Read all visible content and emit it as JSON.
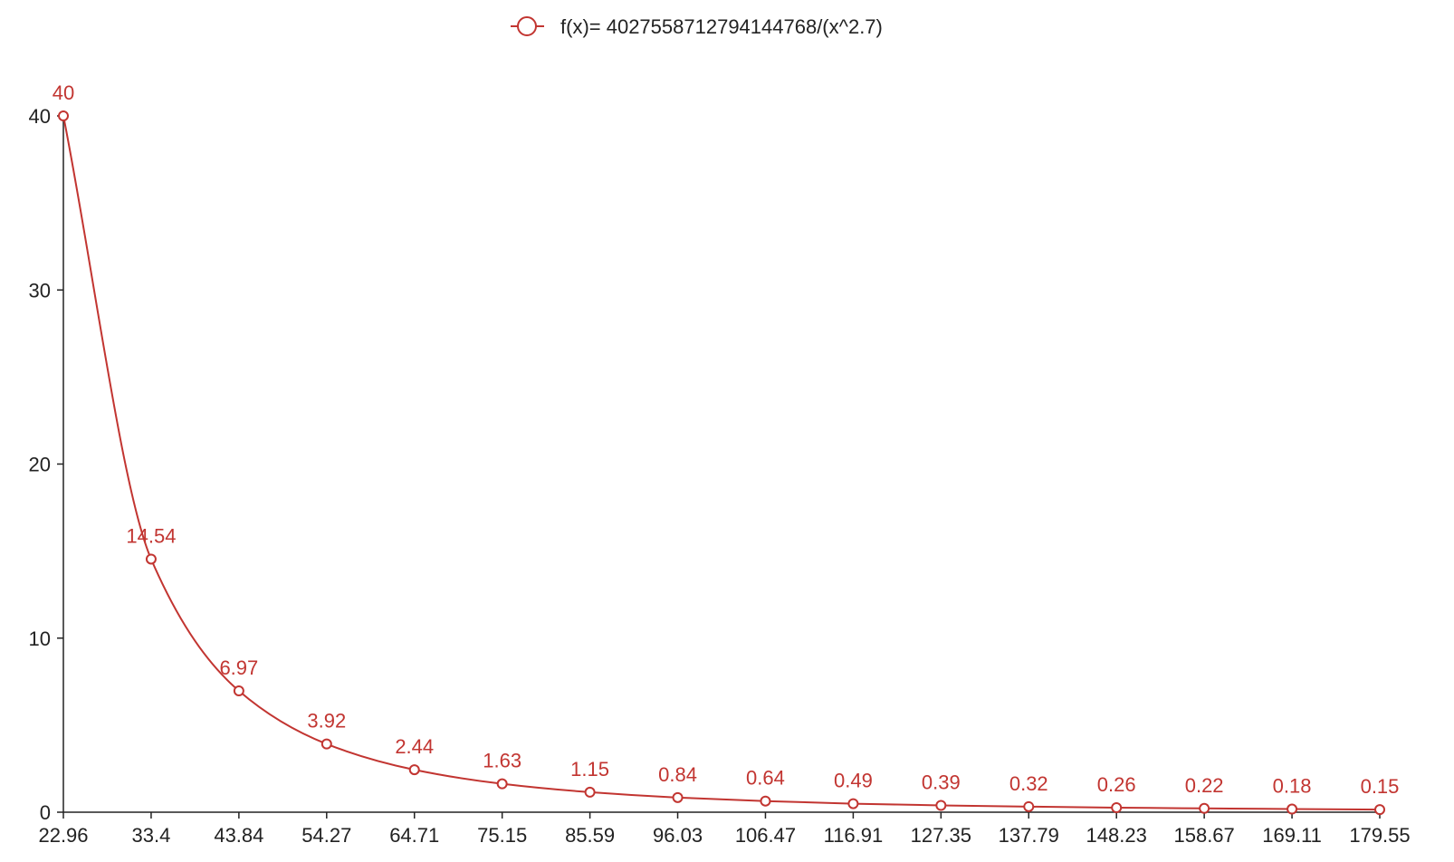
{
  "chart_data": {
    "type": "line",
    "title": "",
    "xlabel": "",
    "ylabel": "",
    "grid": false,
    "legend_position": "top-center",
    "smooth": true,
    "colors": {
      "series": "#c23531",
      "axis": "#222222",
      "marker_fill": "#ffffff"
    },
    "x_ticks": [
      "22.96",
      "33.4",
      "43.84",
      "54.27",
      "64.71",
      "75.15",
      "85.59",
      "96.03",
      "106.47",
      "116.91",
      "127.35",
      "137.79",
      "148.23",
      "158.67",
      "169.11",
      "179.55"
    ],
    "y_ticks": [
      0,
      10,
      20,
      30,
      40
    ],
    "ylim": [
      0,
      40
    ],
    "series": [
      {
        "name": "f(x)= 4027558712794144768/(x^2.7)",
        "values": [
          40,
          14.54,
          6.97,
          3.92,
          2.44,
          1.63,
          1.15,
          0.84,
          0.64,
          0.49,
          0.39,
          0.32,
          0.26,
          0.22,
          0.18,
          0.15
        ],
        "labels": [
          "40",
          "14.54",
          "6.97",
          "3.92",
          "2.44",
          "1.63",
          "1.15",
          "0.84",
          "0.64",
          "0.49",
          "0.39",
          "0.32",
          "0.26",
          "0.22",
          "0.18",
          "0.15"
        ]
      }
    ]
  }
}
